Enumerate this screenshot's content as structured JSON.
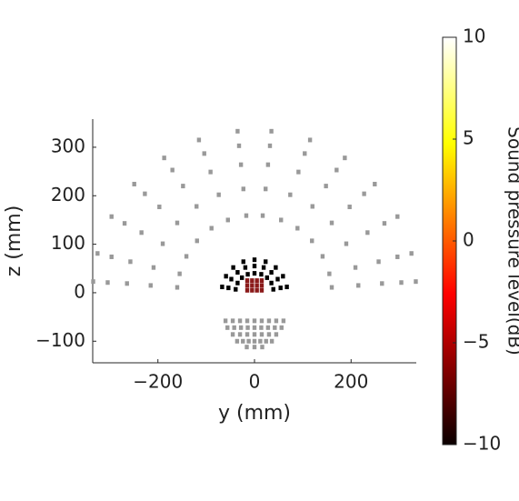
{
  "chart_data": {
    "type": "scatter",
    "xlabel": "y (mm)",
    "ylabel": "z (mm)",
    "xlim": [
      -335,
      335
    ],
    "ylim": [
      -144.5,
      358
    ],
    "xticks": [
      {
        "value": -200,
        "label": "−200"
      },
      0,
      200
    ],
    "yticks": [
      {
        "value": -100,
        "label": "−100"
      },
      0,
      100,
      200,
      300
    ],
    "colorbar": {
      "label": "Sound pressure level(dB)",
      "colormap": "hot",
      "clim": [
        -10,
        10
      ],
      "ticks": [
        {
          "value": -10,
          "label": "−10"
        },
        {
          "value": -5,
          "label": "−5"
        },
        0,
        5,
        10
      ]
    },
    "series": [
      {
        "color": "#999999",
        "x": [
          17,
          23,
          28,
          32,
          35,
          55,
          74,
          91,
          104,
          115,
          89,
          120,
          148,
          170,
          187,
          119,
          160,
          197,
          227,
          249,
          141,
          190,
          234,
          269,
          296,
          155,
          209,
          257,
          296,
          325,
          160,
          215,
          264,
          304,
          334,
          -17,
          -23,
          -28,
          -32,
          -35,
          -55,
          -74,
          -91,
          -104,
          -115,
          -89,
          -120,
          -148,
          -170,
          -187,
          -119,
          -160,
          -197,
          -227,
          -249,
          -141,
          -190,
          -234,
          -269,
          -296,
          -155,
          -209,
          -257,
          -296,
          -325,
          -160,
          -215,
          -264,
          -304,
          -334
        ],
        "values": [
          159,
          214,
          264,
          303,
          333,
          150,
          202,
          249,
          287,
          315,
          133,
          178,
          220,
          253,
          278,
          107,
          144,
          177,
          204,
          224,
          75,
          101,
          124,
          143,
          157,
          39,
          52,
          64,
          74,
          81,
          11,
          15,
          19,
          21,
          23,
          159,
          214,
          264,
          303,
          333,
          150,
          202,
          249,
          287,
          315,
          133,
          178,
          220,
          253,
          278,
          107,
          144,
          177,
          204,
          224,
          75,
          101,
          124,
          143,
          157,
          39,
          52,
          64,
          74,
          81,
          11,
          15,
          19,
          21,
          23
        ]
      },
      {
        "color": "#999999",
        "x": [
          -60,
          -45,
          -30,
          -15,
          0,
          15,
          30,
          45,
          60,
          -56,
          -42,
          -28,
          -14,
          0,
          14,
          28,
          42,
          56,
          -45,
          -30,
          -15,
          0,
          15,
          30,
          45,
          -36,
          -24,
          -12,
          0,
          12,
          24,
          36,
          -16,
          0,
          16
        ],
        "values": [
          -58,
          -58,
          -58,
          -58,
          -58,
          -58,
          -58,
          -58,
          -58,
          -72,
          -72,
          -72,
          -72,
          -72,
          -72,
          -72,
          -72,
          -72,
          -86,
          -86,
          -86,
          -86,
          -86,
          -86,
          -86,
          -100,
          -100,
          -100,
          -100,
          -100,
          -100,
          -100,
          -112,
          -112,
          -112
        ]
      },
      {
        "color": "#000000",
        "x": [
          39,
          35,
          26,
          14,
          0,
          -14,
          -26,
          -35,
          -39,
          54,
          48,
          35,
          19,
          0,
          -19,
          -35,
          -48,
          -54,
          67,
          59,
          44,
          23,
          0,
          -23,
          -44,
          -59,
          -67
        ],
        "values": [
          7,
          20,
          31,
          38,
          40,
          38,
          31,
          20,
          7,
          10,
          28,
          42,
          52,
          55,
          52,
          42,
          28,
          10,
          12,
          34,
          52,
          64,
          68,
          64,
          52,
          34,
          12
        ]
      },
      {
        "color": "#8b1a1a",
        "x": [
          -15,
          -5,
          5,
          15,
          -15,
          -5,
          5,
          15,
          -15,
          -5,
          5,
          15
        ],
        "values": [
          5,
          5,
          5,
          5,
          15,
          15,
          15,
          15,
          25,
          25,
          25,
          25
        ]
      }
    ]
  }
}
